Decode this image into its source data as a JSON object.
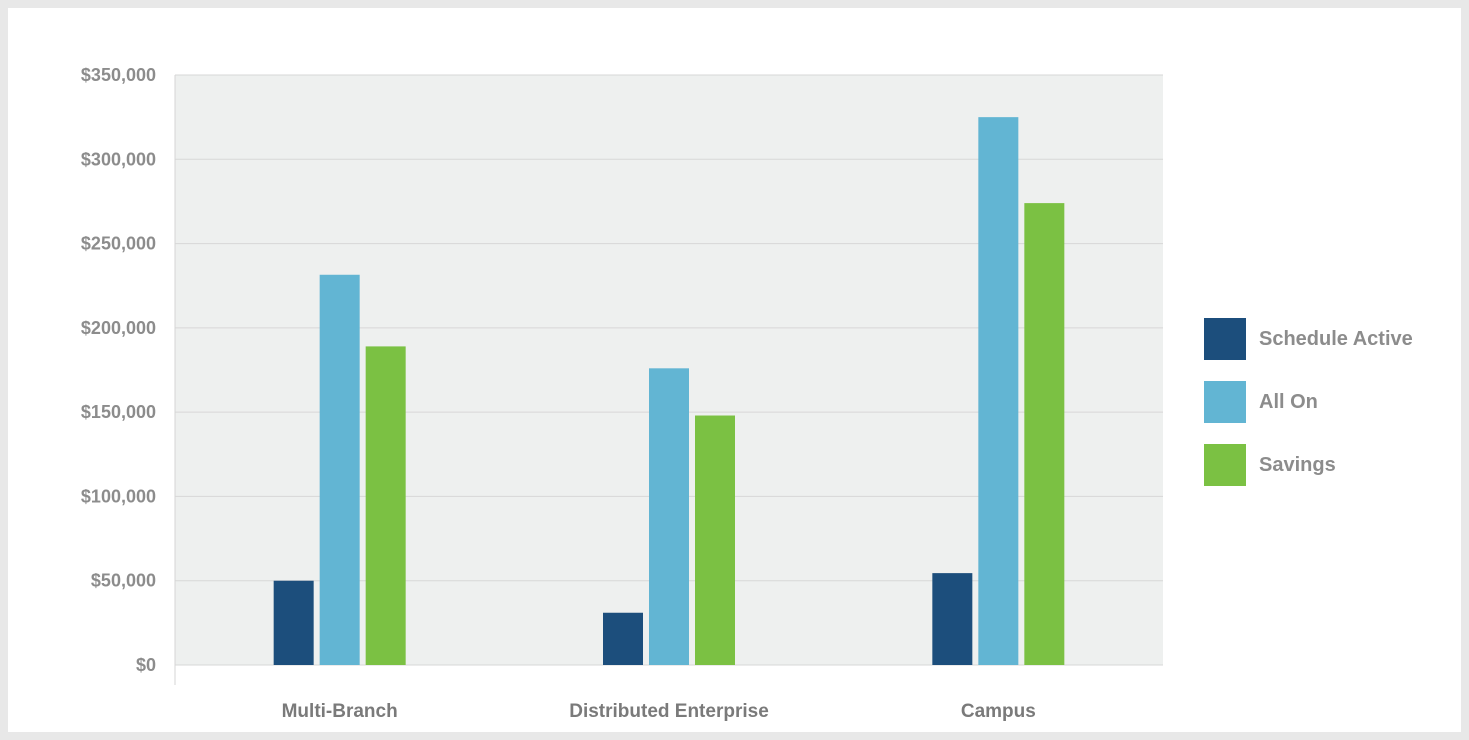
{
  "chart_data": {
    "type": "bar",
    "categories": [
      "Multi-Branch",
      "Distributed Enterprise",
      "Campus"
    ],
    "series": [
      {
        "name": "Schedule Active",
        "color": "#1c4e7c",
        "values": [
          50000,
          31000,
          54500
        ]
      },
      {
        "name": "All On",
        "color": "#62b5d3",
        "values": [
          231500,
          176000,
          325000
        ]
      },
      {
        "name": "Savings",
        "color": "#7bc143",
        "values": [
          189000,
          148000,
          274000
        ]
      }
    ],
    "ylim": [
      0,
      350000
    ],
    "yticks": [
      0,
      50000,
      100000,
      150000,
      200000,
      250000,
      300000,
      350000
    ],
    "ytick_labels": [
      "$0",
      "$50,000",
      "$100,000",
      "$150,000",
      "$200,000",
      "$250,000",
      "$300,000",
      "$350,000"
    ],
    "grid": true,
    "legend_position": "right",
    "title": "",
    "xlabel": "",
    "ylabel": ""
  }
}
